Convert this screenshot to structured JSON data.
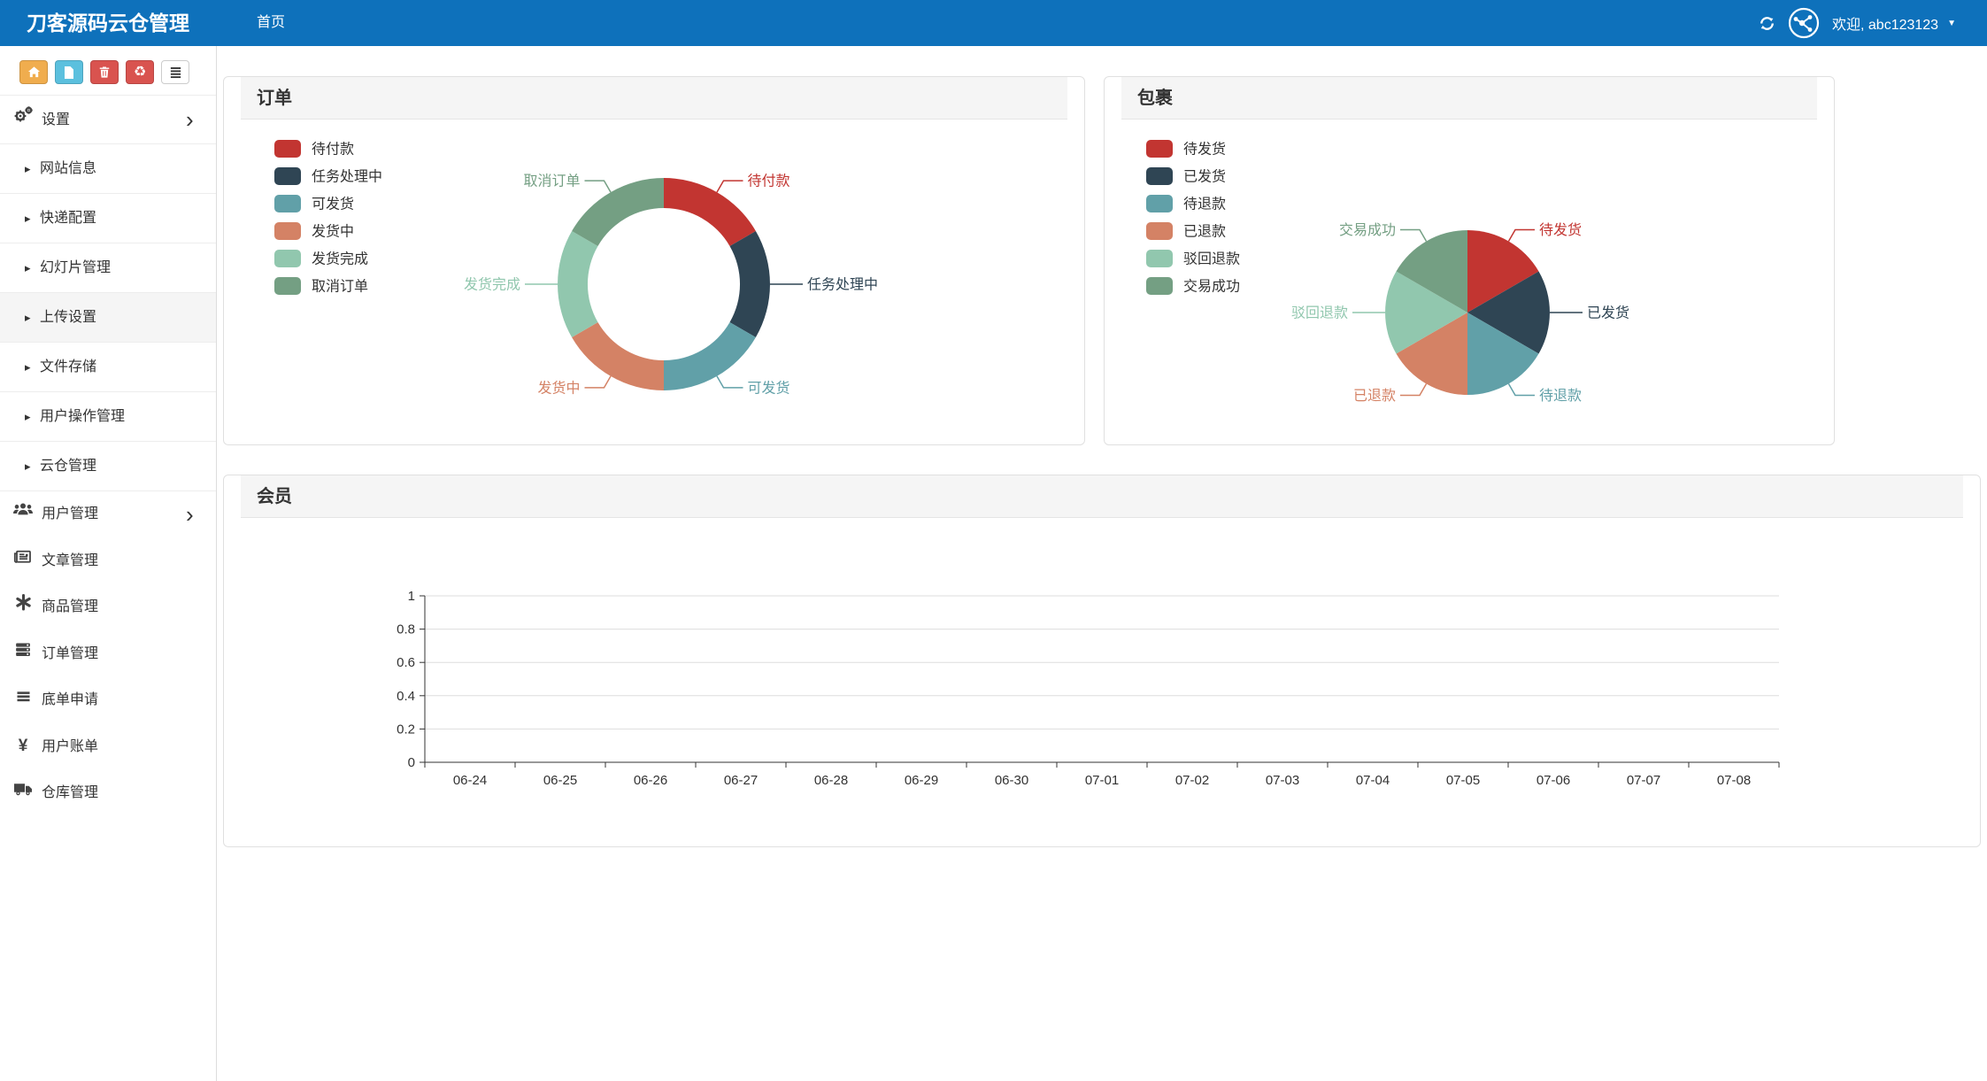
{
  "navbar": {
    "brand": "刀客源码云仓管理",
    "home_label": "首页",
    "welcome": "欢迎, abc123123",
    "bg_color": "#0e71bb"
  },
  "sidebar": {
    "toolbar": [
      {
        "name": "home-button",
        "icon": "home-icon",
        "color": "#f0ad4e"
      },
      {
        "name": "file-button",
        "icon": "file-icon",
        "color": "#5bc0de"
      },
      {
        "name": "trash-button",
        "icon": "trash-icon",
        "color": "#d9534f"
      },
      {
        "name": "recycle-button",
        "icon": "recycle-icon",
        "color": "#d9534f"
      },
      {
        "name": "list-button",
        "icon": "list-icon",
        "color": "#ffffff"
      }
    ],
    "menu": [
      {
        "label": "设置",
        "level": "top",
        "icon": "gears-icon",
        "chevron": true,
        "name": "settings"
      },
      {
        "label": "网站信息",
        "level": "sub",
        "name": "site-info"
      },
      {
        "label": "快递配置",
        "level": "sub",
        "name": "express-config"
      },
      {
        "label": "幻灯片管理",
        "level": "sub",
        "name": "slideshow-management"
      },
      {
        "label": "上传设置",
        "level": "sub",
        "name": "upload-settings",
        "active": true
      },
      {
        "label": "文件存储",
        "level": "sub",
        "name": "file-storage"
      },
      {
        "label": "用户操作管理",
        "level": "sub",
        "name": "user-operation-management"
      },
      {
        "label": "云仓管理",
        "level": "sub",
        "name": "cloud-warehouse-management"
      },
      {
        "label": "用户管理",
        "level": "top2",
        "icon": "users-icon",
        "chevron": true,
        "name": "user-management"
      },
      {
        "label": "文章管理",
        "level": "top2",
        "icon": "newspaper-icon",
        "name": "article-management"
      },
      {
        "label": "商品管理",
        "level": "top2",
        "icon": "asterisk-icon",
        "name": "product-management"
      },
      {
        "label": "订单管理",
        "level": "top2",
        "icon": "server-icon",
        "name": "order-management"
      },
      {
        "label": "底单申请",
        "level": "top2",
        "icon": "align-justify-icon",
        "name": "receipt-application"
      },
      {
        "label": "用户账单",
        "level": "top2",
        "icon": "yen-icon",
        "name": "user-bills"
      },
      {
        "label": "仓库管理",
        "level": "top2",
        "icon": "truck-icon",
        "name": "warehouse-management"
      }
    ]
  },
  "panels": {
    "orders": {
      "title": "订单"
    },
    "packages": {
      "title": "包裹"
    },
    "members": {
      "title": "会员"
    }
  },
  "chart_data": [
    {
      "id": "orders",
      "type": "pie",
      "variant": "donut",
      "title": "订单",
      "legend_position": "left",
      "slices": [
        {
          "name": "待付款",
          "value": 1,
          "color": "#c23531"
        },
        {
          "name": "任务处理中",
          "value": 1,
          "color": "#2f4554"
        },
        {
          "name": "可发货",
          "value": 1,
          "color": "#61a0a8"
        },
        {
          "name": "发货中",
          "value": 1,
          "color": "#d48265"
        },
        {
          "name": "发货完成",
          "value": 1,
          "color": "#91c7ae"
        },
        {
          "name": "取消订单",
          "value": 1,
          "color": "#749f83"
        }
      ]
    },
    {
      "id": "packages",
      "type": "pie",
      "variant": "pie",
      "title": "包裹",
      "legend_position": "left",
      "slices": [
        {
          "name": "待发货",
          "value": 1,
          "color": "#c23531"
        },
        {
          "name": "已发货",
          "value": 1,
          "color": "#2f4554"
        },
        {
          "name": "待退款",
          "value": 1,
          "color": "#61a0a8"
        },
        {
          "name": "已退款",
          "value": 1,
          "color": "#d48265"
        },
        {
          "name": "驳回退款",
          "value": 1,
          "color": "#91c7ae"
        },
        {
          "name": "交易成功",
          "value": 1,
          "color": "#749f83"
        }
      ]
    },
    {
      "id": "members",
      "type": "line",
      "title": "会员",
      "categories": [
        "06-24",
        "06-25",
        "06-26",
        "06-27",
        "06-28",
        "06-29",
        "06-30",
        "07-01",
        "07-02",
        "07-03",
        "07-04",
        "07-05",
        "07-06",
        "07-07",
        "07-08"
      ],
      "series": [],
      "ylim": [
        0,
        1
      ],
      "yticks": [
        0,
        0.2,
        0.4,
        0.6,
        0.8,
        1
      ],
      "grid": true,
      "legend_position": "none"
    }
  ]
}
